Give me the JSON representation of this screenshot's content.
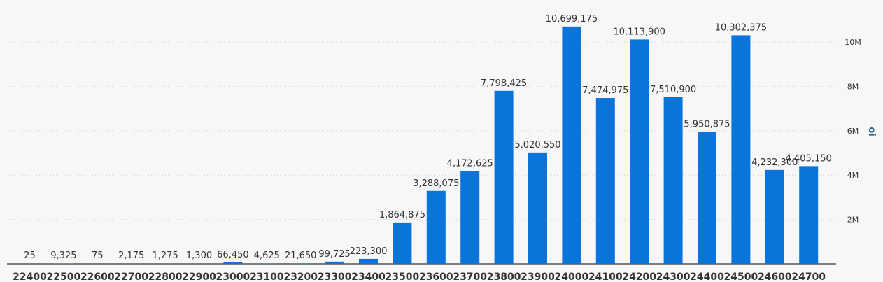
{
  "chart_data": {
    "type": "bar",
    "categories": [
      "22400",
      "22500",
      "22600",
      "22700",
      "22800",
      "22900",
      "23000",
      "23100",
      "23200",
      "23300",
      "23400",
      "23500",
      "23600",
      "23700",
      "23800",
      "23900",
      "24000",
      "24100",
      "24200",
      "24300",
      "24400",
      "24500",
      "24600",
      "24700"
    ],
    "values": [
      25,
      9325,
      75,
      2175,
      1275,
      1300,
      66450,
      4625,
      21650,
      99725,
      223300,
      1864875,
      3288075,
      4172625,
      7798425,
      5020550,
      10699175,
      7474975,
      10113900,
      7510900,
      5950875,
      10302375,
      4232300,
      4405150
    ],
    "data_labels": [
      "25",
      "9,325",
      "75",
      "2,175",
      "1,275",
      "1,300",
      "66,450",
      "4,625",
      "21,650",
      "99,725",
      "223,300",
      "1,864,875",
      "3,288,075",
      "4,172,625",
      "7,798,425",
      "5,020,550",
      "10,699,175",
      "7,474,975",
      "10,113,900",
      "7,510,900",
      "5,950,875",
      "10,302,375",
      "4,232,300",
      "4,405,150"
    ],
    "ylabel": "oi",
    "ylim": [
      0,
      11000000
    ],
    "y_ticks": [
      2000000,
      4000000,
      6000000,
      8000000,
      10000000
    ],
    "y_tick_labels": [
      "2M",
      "4M",
      "6M",
      "8M",
      "10M"
    ],
    "y_axis_side": "right",
    "grid": true,
    "legend": "none",
    "bar_color": "#0a74da"
  }
}
